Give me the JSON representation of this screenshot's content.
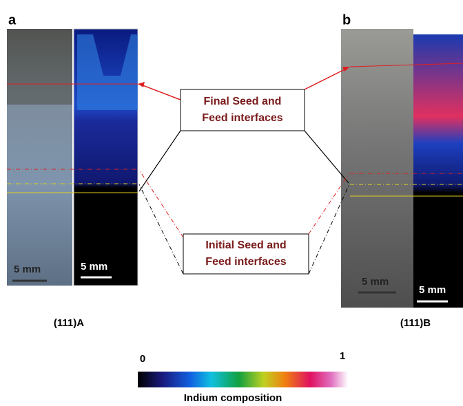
{
  "panels": [
    {
      "label": "a",
      "photo_scale": "5 mm",
      "map_scale": "5 mm",
      "caption": "(111)A"
    },
    {
      "label": "b",
      "photo_scale": "5 mm",
      "map_scale": "5 mm",
      "caption": "(111)B"
    }
  ],
  "annotations": {
    "final": [
      "Final Seed and",
      "Feed interfaces"
    ],
    "initial": [
      "Initial Seed and",
      "Feed interfaces"
    ]
  },
  "colorbar": {
    "min": 0,
    "max": 1,
    "label": "Indium composition"
  }
}
